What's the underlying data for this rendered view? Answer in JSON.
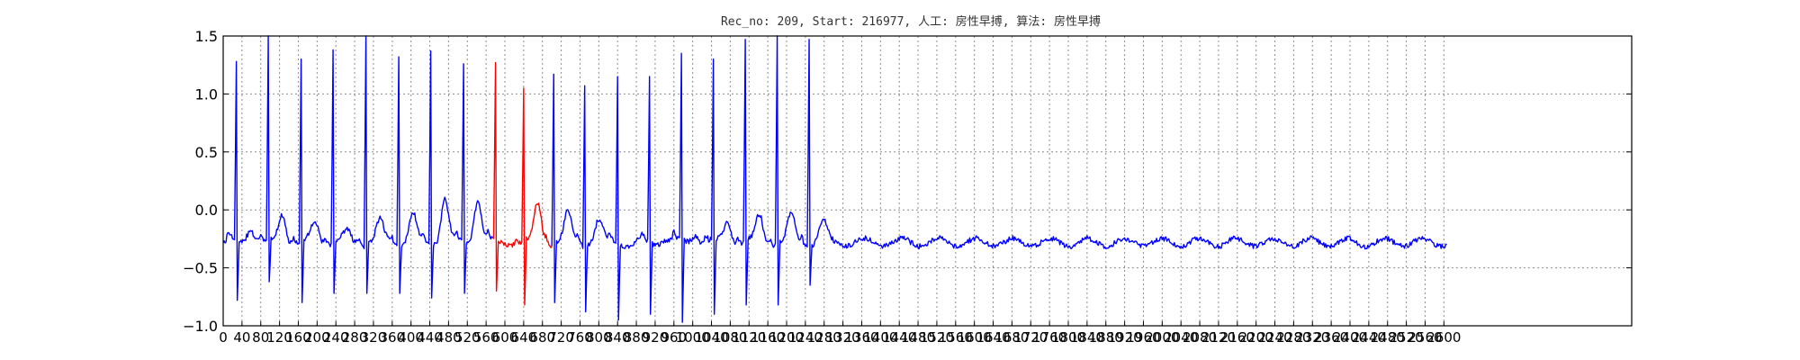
{
  "chart_data": {
    "type": "line",
    "title": "Rec_no: 209, Start: 216977, 人工: 房性早搏, 算法: 房性早搏",
    "xlabel": "",
    "ylabel": "",
    "xlim": [
      0,
      1500
    ],
    "ylim": [
      -1.0,
      1.5
    ],
    "grid": true,
    "legend": "none",
    "y_ticks": [
      "1.5",
      "1.0",
      "0.5",
      "0.0",
      "−0.5",
      "−1.0"
    ],
    "y_tick_values": [
      1.5,
      1.0,
      0.5,
      0.0,
      -0.5,
      -1.0
    ],
    "x_ticks": [
      "0",
      "40",
      "80",
      "120",
      "160",
      "200",
      "240",
      "280",
      "320",
      "360",
      "400",
      "440",
      "480",
      "520",
      "560",
      "600",
      "640",
      "680",
      "720",
      "760",
      "800",
      "840",
      "880",
      "920",
      "960",
      "1000",
      "1040",
      "1080",
      "1120",
      "1160",
      "1200",
      "1240",
      "1280",
      "1320",
      "1360",
      "1400",
      "1440",
      "1480",
      "1520",
      "1560",
      "1600",
      "1640",
      "1680",
      "1720",
      "1760",
      "1800",
      "1840",
      "1880",
      "1920",
      "1960",
      "2000",
      "2040",
      "2080",
      "2120",
      "2160",
      "2200",
      "2240",
      "2280",
      "2320",
      "2360",
      "2400",
      "2440",
      "2480",
      "2520",
      "2560",
      "2600"
    ],
    "x_tick_values": [
      0,
      20,
      40,
      60,
      80,
      100,
      120,
      140,
      160,
      180,
      200,
      220,
      240,
      260,
      280,
      300,
      320,
      340,
      360,
      380,
      400,
      420,
      440,
      460,
      480,
      500,
      520,
      540,
      560,
      580,
      600,
      620,
      640,
      660,
      680,
      700,
      720,
      740,
      760,
      780,
      800,
      820,
      840,
      860,
      880,
      900,
      920,
      940,
      960,
      980,
      1000,
      1020,
      1040,
      1060,
      1080,
      1100,
      1120,
      1140,
      1160,
      1180,
      1200,
      1220,
      1240,
      1260,
      1280,
      1300
    ],
    "signal_end_x": 1303,
    "series": [
      {
        "color": "#0000ff",
        "beats": [
          {
            "r": 14,
            "rh": 1.28,
            "s": -0.78,
            "t": -0.15
          },
          {
            "r": 48,
            "rh": 1.5,
            "s": -0.62,
            "t": -0.02
          },
          {
            "r": 83,
            "rh": 1.3,
            "s": -0.8,
            "t": -0.1
          },
          {
            "r": 117,
            "rh": 1.38,
            "s": -0.72,
            "t": -0.2
          },
          {
            "r": 152,
            "rh": 1.5,
            "s": -0.72,
            "t": -0.1
          },
          {
            "r": 187,
            "rh": 1.32,
            "s": -0.72,
            "t": -0.05
          },
          {
            "r": 221,
            "rh": 1.37,
            "s": -0.76,
            "t": 0.1
          },
          {
            "r": 256,
            "rh": 1.26,
            "s": -0.72,
            "t": 0.1
          },
          {
            "r": 290,
            "rh": 1.27,
            "s": -0.7,
            "t": null
          },
          {
            "r": 352,
            "rh": 1.17,
            "s": -0.8,
            "t": -0.05
          },
          {
            "r": 385,
            "rh": 1.07,
            "s": -0.88,
            "t": -0.1
          },
          {
            "r": 420,
            "rh": 1.15,
            "s": -0.95,
            "t": -0.3
          },
          {
            "r": 454,
            "rh": 1.15,
            "s": -0.9,
            "t": -0.25
          },
          {
            "r": 488,
            "rh": 1.35,
            "s": -0.97,
            "t": -0.2
          },
          {
            "r": 522,
            "rh": 1.3,
            "s": -0.9,
            "t": -0.1
          },
          {
            "r": 556,
            "rh": 1.47,
            "s": -0.82,
            "t": -0.05
          },
          {
            "r": 590,
            "rh": 1.5,
            "s": -0.82,
            "t": -0.05
          },
          {
            "r": 624,
            "rh": 1.47,
            "s": -0.65,
            "t": -0.1
          }
        ]
      },
      {
        "color": "#ff0000",
        "beats": [
          {
            "r": 320,
            "rh": 1.05,
            "s": -0.82,
            "t": 0.05
          }
        ]
      }
    ]
  }
}
